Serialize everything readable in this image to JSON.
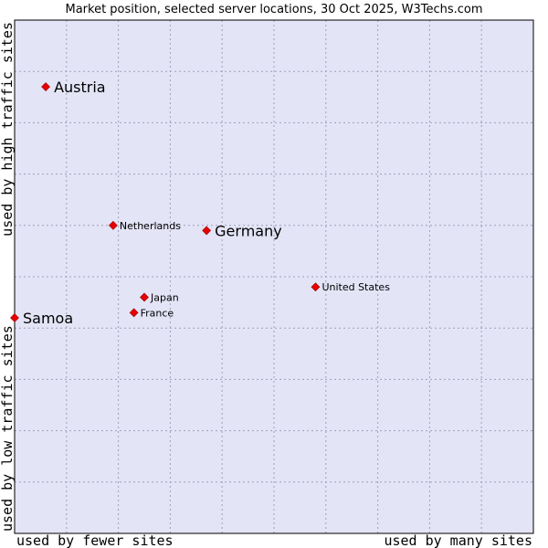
{
  "chart_data": {
    "type": "scatter",
    "title": "Market position, selected server locations, 30 Oct 2025, W3Techs.com",
    "axes": {
      "x": {
        "low_label": "used by fewer sites",
        "high_label": "used by many sites",
        "range": [
          0,
          100
        ]
      },
      "y": {
        "low_label": "used by low traffic sites",
        "high_label": "used by high traffic sites",
        "range": [
          0,
          100
        ]
      }
    },
    "grid": true,
    "points": [
      {
        "name": "Austria",
        "x": 6,
        "y": 87,
        "highlight": true
      },
      {
        "name": "Netherlands",
        "x": 19,
        "y": 60,
        "highlight": false
      },
      {
        "name": "Germany",
        "x": 37,
        "y": 59,
        "highlight": true
      },
      {
        "name": "United States",
        "x": 58,
        "y": 48,
        "highlight": false
      },
      {
        "name": "Japan",
        "x": 25,
        "y": 46,
        "highlight": false
      },
      {
        "name": "France",
        "x": 23,
        "y": 43,
        "highlight": false
      },
      {
        "name": "Samoa",
        "x": 0,
        "y": 42,
        "highlight": true
      }
    ]
  },
  "colors": {
    "plot_background": "#e4e4f7",
    "grid": "#a0a0b8",
    "border": "#000000",
    "marker": "#e60000",
    "text": "#000000"
  }
}
